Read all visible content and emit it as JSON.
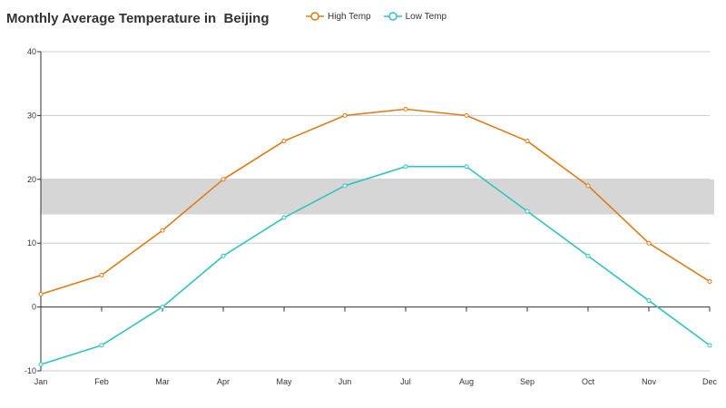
{
  "chart_data": {
    "type": "line",
    "title": "Monthly Average Temperature in  Beijing",
    "categories": [
      "Jan",
      "Feb",
      "Mar",
      "Apr",
      "May",
      "Jun",
      "Jul",
      "Aug",
      "Sep",
      "Oct",
      "Nov",
      "Dec"
    ],
    "series": [
      {
        "name": "High Temp",
        "color": "#e07b12",
        "values": [
          2,
          5,
          12,
          20,
          26,
          30,
          31,
          30,
          26,
          19,
          10,
          4
        ]
      },
      {
        "name": "Low Temp",
        "color": "#2ec4bf",
        "values": [
          -9,
          -6,
          0,
          8,
          14,
          19,
          22,
          22,
          15,
          8,
          1,
          -6
        ]
      }
    ],
    "ylim": [
      -10,
      40
    ],
    "yticks": [
      -10,
      0,
      10,
      20,
      30,
      40
    ],
    "band": {
      "from": 14.5,
      "to": 20,
      "color": "#d6d6d6"
    },
    "grid": true,
    "legend_position": "top-center"
  }
}
